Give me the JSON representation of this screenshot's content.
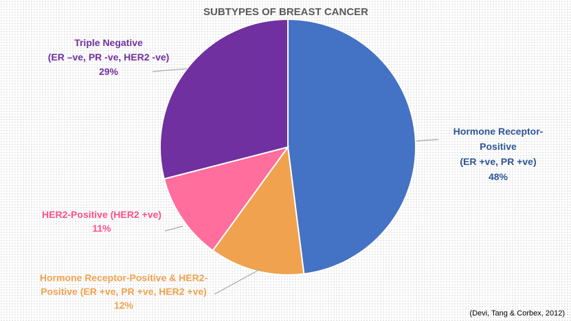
{
  "chart_data": {
    "type": "pie",
    "title": "SUBTYPES OF BREAST CANCER",
    "slices": [
      {
        "label": [
          "Hormone Receptor-",
          "Positive",
          "(ER +ve, PR +ve)"
        ],
        "value": 48,
        "value_text": "48%",
        "color": "#4472C4",
        "label_color": "#2F5597"
      },
      {
        "label": [
          "Hormone Receptor-Positive & HER2-",
          "Positive (ER +ve, PR +ve, HER2 +ve)"
        ],
        "value": 12,
        "value_text": "12%",
        "color": "#F0A24E",
        "label_color": "#F0A24E"
      },
      {
        "label": [
          "HER2-Positive (HER2 +ve)"
        ],
        "value": 11,
        "value_text": "11%",
        "color": "#FF6E9D",
        "label_color": "#FF4F8B"
      },
      {
        "label": [
          "Triple Negative",
          "(ER –ve, PR -ve, HER2 -ve)"
        ],
        "value": 29,
        "value_text": "29%",
        "color": "#7030A0",
        "label_color": "#7030A0"
      }
    ],
    "legend": "none"
  },
  "source": "(Devi, Tang & Corbex, 2012)"
}
